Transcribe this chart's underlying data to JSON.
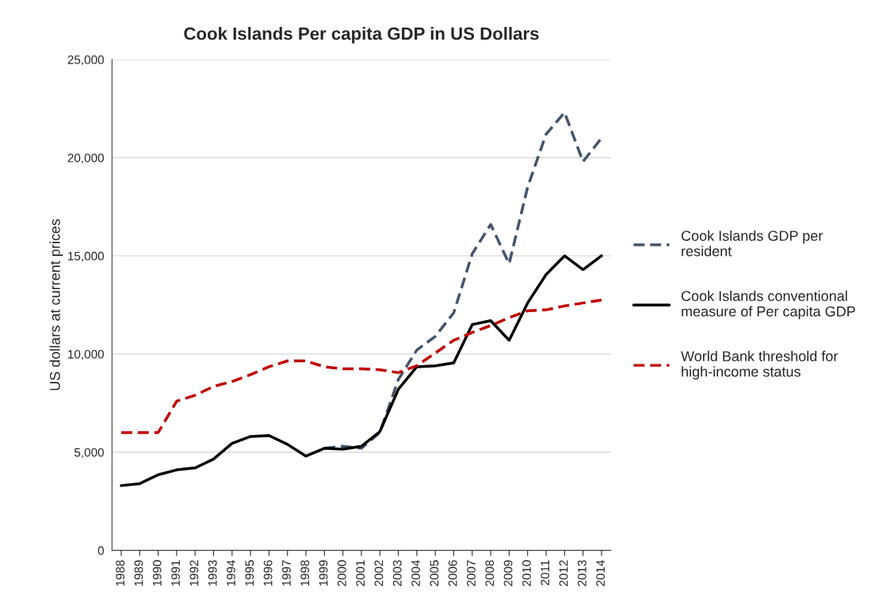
{
  "chart_data": {
    "type": "line",
    "title": "Cook Islands Per capita GDP in US Dollars",
    "ylabel": "US dollars at current prices",
    "categories": [
      "1988",
      "1989",
      "1990",
      "1991",
      "1992",
      "1993",
      "1994",
      "1995",
      "1996",
      "1997",
      "1998",
      "1999",
      "2000",
      "2001",
      "2002",
      "2003",
      "2004",
      "2005",
      "2006",
      "2007",
      "2008",
      "2009",
      "2010",
      "2011",
      "2012",
      "2013",
      "2014"
    ],
    "series": [
      {
        "name": "Cook Islands GDP per resident",
        "color": "#44546a",
        "line_style": "dashed",
        "values": [
          null,
          null,
          null,
          null,
          null,
          null,
          null,
          null,
          null,
          null,
          null,
          5200,
          5300,
          5200,
          6000,
          8700,
          10200,
          10900,
          12100,
          15100,
          16600,
          14600,
          18500,
          21200,
          22300,
          19800,
          21000
        ]
      },
      {
        "name": "Cook Islands conventional measure of Per capita GDP",
        "color": "#000000",
        "line_style": "solid",
        "values": [
          3300,
          3400,
          3850,
          4100,
          4200,
          4650,
          5450,
          5800,
          5850,
          5400,
          4800,
          5200,
          5150,
          5300,
          6050,
          8200,
          9350,
          9400,
          9550,
          11500,
          11700,
          10700,
          12600,
          14050,
          15000,
          14300,
          15000
        ]
      },
      {
        "name": "World Bank threshold for high-income status",
        "color": "#c00000",
        "line_style": "dashed",
        "values": [
          6000,
          6000,
          6000,
          7600,
          7900,
          8350,
          8600,
          8950,
          9350,
          9650,
          9650,
          9350,
          9250,
          9250,
          9200,
          9050,
          9400,
          10050,
          10700,
          11100,
          11450,
          11850,
          12200,
          12250,
          12450,
          12600,
          12750
        ]
      }
    ],
    "ylim": [
      0,
      25000
    ],
    "yticks": [
      0,
      {
        "value": 5000,
        "label": "5,000"
      },
      {
        "value": 10000,
        "label": "10,000"
      },
      {
        "value": 15000,
        "label": "15,000"
      },
      {
        "value": 20000,
        "label": "20,000"
      },
      {
        "value": 25000,
        "label": "25,000"
      }
    ],
    "grid": "y",
    "legend": "right",
    "marker": "none"
  }
}
